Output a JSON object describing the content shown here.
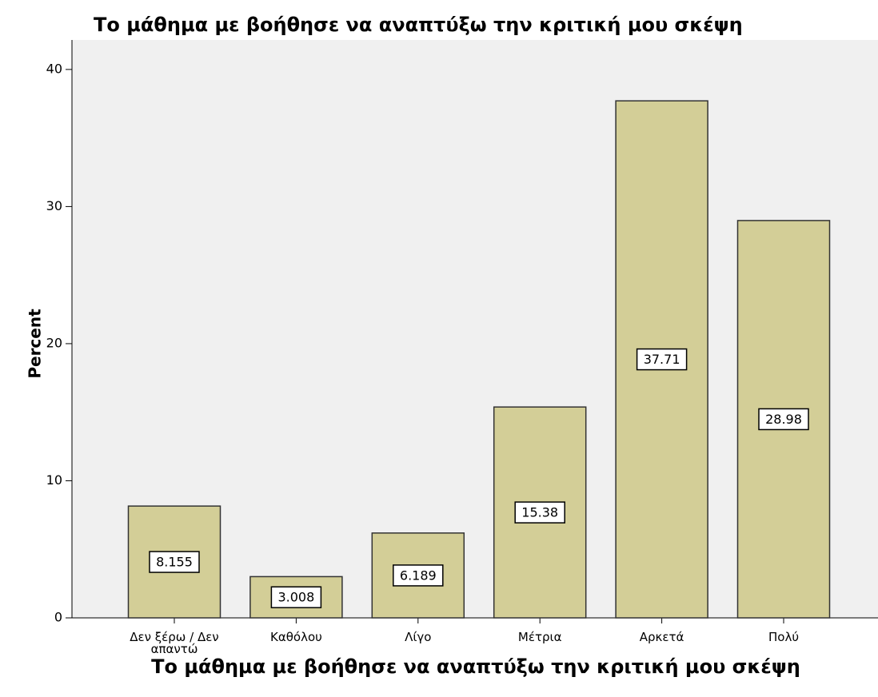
{
  "chart_data": {
    "type": "bar",
    "title": "Το μάθημα με βοήθησε να αναπτύξω την κριτική μου σκέψη",
    "x_label": "Το μάθημα με βοήθησε να αναπτύξω την κριτική μου σκέψη",
    "y_label": "Percent",
    "categories": [
      "Δεν ξέρω / Δεν απαντώ",
      "Καθόλου",
      "Λίγο",
      "Μέτρια",
      "Αρκετά",
      "Πολύ"
    ],
    "values": [
      8.155,
      3.008,
      6.189,
      15.38,
      37.71,
      28.98
    ],
    "color": "#d3ce97",
    "ylim": [
      0,
      42.15
    ],
    "yticks": [
      0,
      10,
      20,
      30,
      40
    ],
    "grid": false
  }
}
